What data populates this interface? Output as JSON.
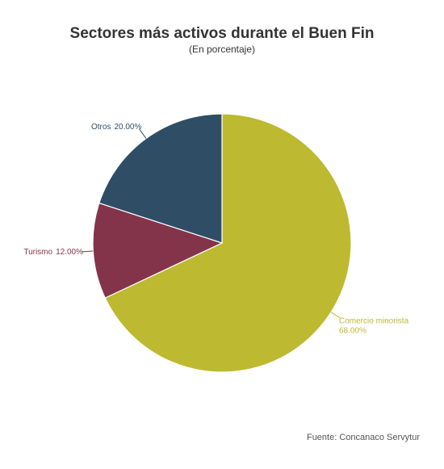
{
  "chart_data": {
    "type": "pie",
    "title": "Sectores más activos durante el Buen Fin",
    "subtitle": "(En porcentaje)",
    "categories": [
      "Comercio minorista",
      "Turismo",
      "Otros"
    ],
    "values": [
      68,
      12,
      20
    ],
    "value_labels": [
      "68.00%",
      "12.00%",
      "20.00%"
    ],
    "colors": [
      "#bdb931",
      "#84344a",
      "#2f4e66"
    ],
    "source": "Fuente: Concanaco Servytur"
  }
}
